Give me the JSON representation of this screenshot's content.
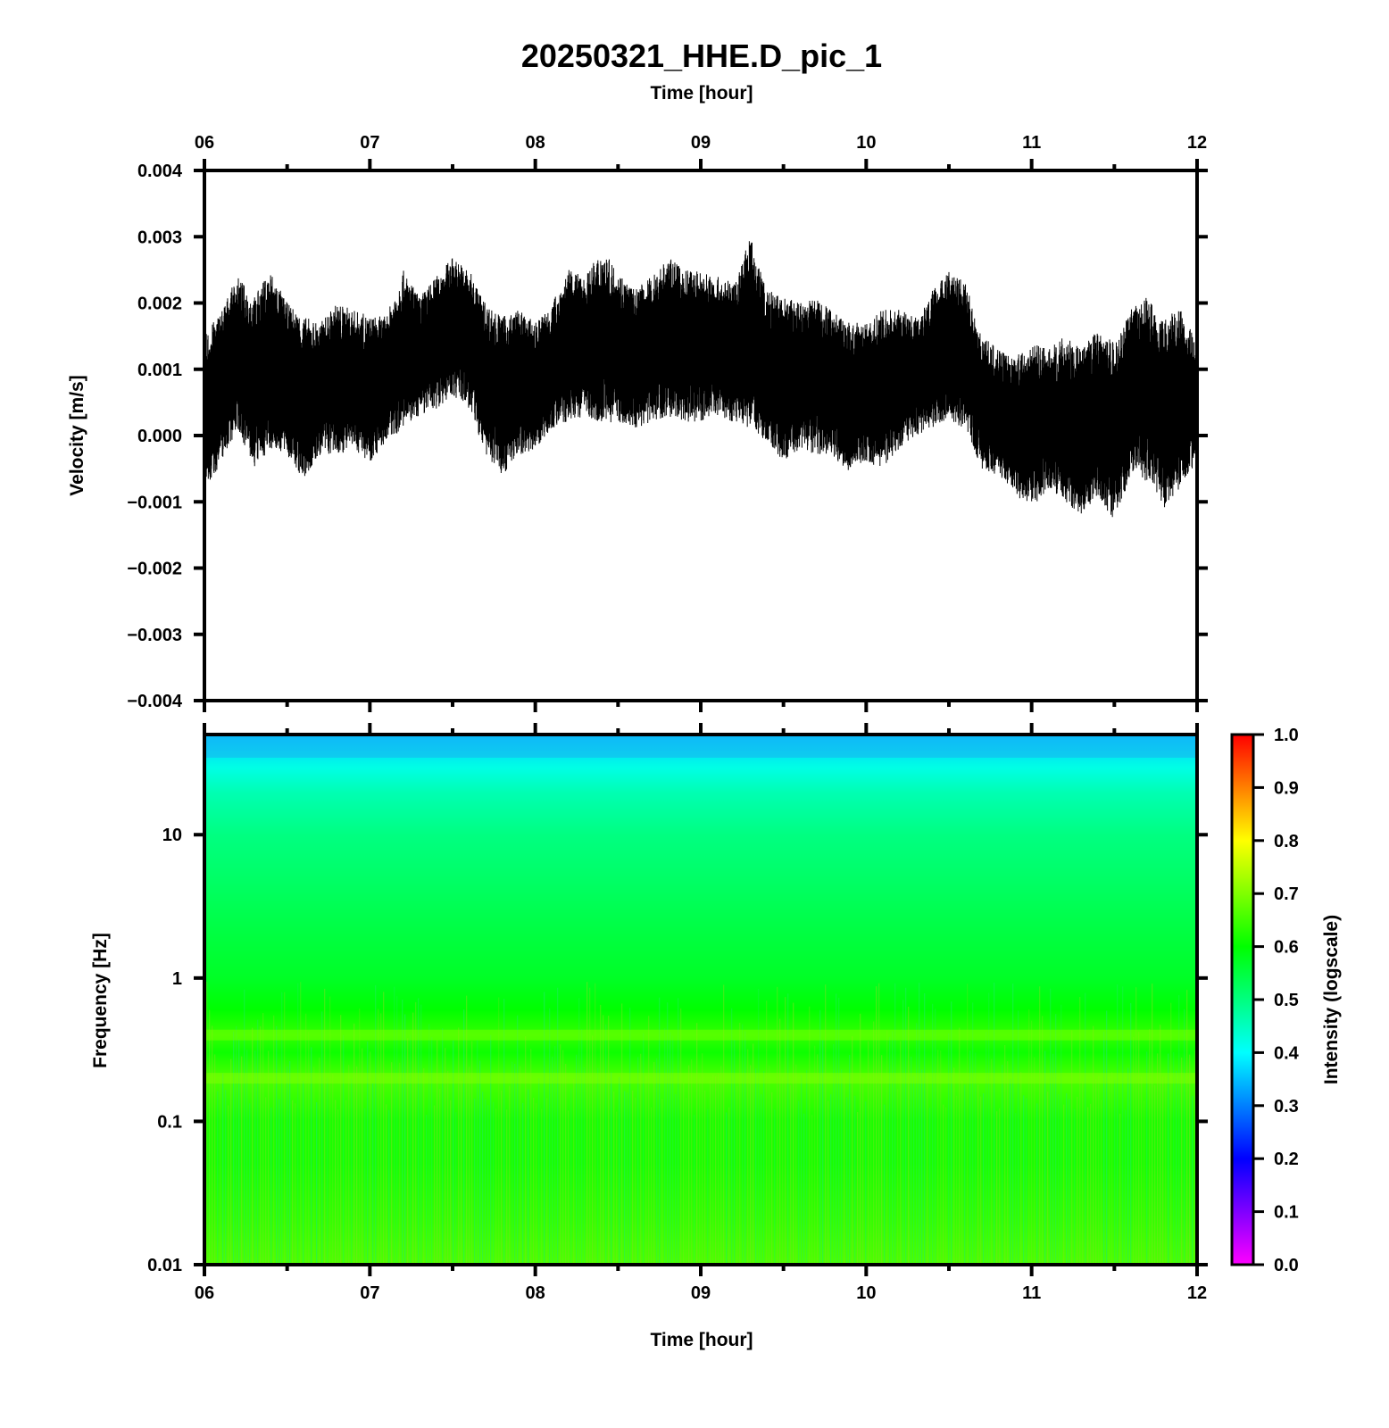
{
  "chart_data": [
    {
      "type": "line",
      "title": "20250321_HHE.D_pic_1",
      "xlabel": "Time [hour]",
      "ylabel": "Velocity [m/s]",
      "xlim": [
        6,
        12
      ],
      "ylim": [
        -0.004,
        0.004
      ],
      "xticks": [
        "06",
        "07",
        "08",
        "09",
        "10",
        "11",
        "12"
      ],
      "yticks": [
        "0.004",
        "0.003",
        "0.002",
        "0.001",
        "0.000",
        "−0.001",
        "−0.002",
        "−0.003",
        "−0.004"
      ],
      "series_color": "#000000",
      "envelope": {
        "x": [
          6.0,
          6.1,
          6.2,
          6.3,
          6.4,
          6.5,
          6.6,
          6.7,
          6.8,
          6.9,
          7.0,
          7.1,
          7.2,
          7.3,
          7.4,
          7.5,
          7.6,
          7.7,
          7.8,
          7.9,
          8.0,
          8.1,
          8.2,
          8.3,
          8.4,
          8.5,
          8.6,
          8.7,
          8.8,
          8.9,
          9.0,
          9.1,
          9.2,
          9.3,
          9.4,
          9.5,
          9.6,
          9.7,
          9.8,
          9.9,
          10.0,
          10.1,
          10.2,
          10.3,
          10.4,
          10.5,
          10.6,
          10.7,
          10.8,
          10.9,
          11.0,
          11.1,
          11.2,
          11.3,
          11.4,
          11.5,
          11.6,
          11.7,
          11.8,
          11.9,
          12.0
        ],
        "upper": [
          0.0015,
          0.0019,
          0.0024,
          0.0021,
          0.0025,
          0.002,
          0.0018,
          0.0017,
          0.002,
          0.0019,
          0.0018,
          0.0018,
          0.0025,
          0.0021,
          0.0024,
          0.0027,
          0.0025,
          0.002,
          0.0018,
          0.0019,
          0.0017,
          0.002,
          0.0025,
          0.0024,
          0.0028,
          0.0025,
          0.0022,
          0.0024,
          0.0027,
          0.0025,
          0.0025,
          0.0024,
          0.0023,
          0.003,
          0.0022,
          0.0021,
          0.002,
          0.0021,
          0.0019,
          0.0017,
          0.0017,
          0.0019,
          0.0019,
          0.0018,
          0.0022,
          0.0025,
          0.0023,
          0.0015,
          0.0013,
          0.0012,
          0.0014,
          0.0013,
          0.0015,
          0.0013,
          0.0016,
          0.0014,
          0.0019,
          0.0021,
          0.0018,
          0.0019,
          0.0014
        ],
        "lower": [
          -0.0009,
          -0.0004,
          0.0001,
          -0.0005,
          -0.0002,
          -0.0003,
          -0.0007,
          -0.0003,
          -0.0003,
          -0.0002,
          -0.0004,
          -0.0001,
          0.0001,
          0.0003,
          0.0004,
          0.0006,
          0.0004,
          -0.0003,
          -0.0006,
          -0.0003,
          -0.0002,
          0.0001,
          0.0002,
          0.0003,
          0.0002,
          0.0002,
          0.0001,
          0.0002,
          0.0003,
          0.0002,
          0.0002,
          0.0003,
          0.0002,
          0.0001,
          -0.0001,
          -0.0004,
          -0.0002,
          -0.0003,
          -0.0003,
          -0.0006,
          -0.0004,
          -0.0005,
          -0.0002,
          0.0,
          0.0001,
          0.0002,
          0.0001,
          -0.0005,
          -0.0006,
          -0.0009,
          -0.0011,
          -0.0008,
          -0.001,
          -0.0012,
          -0.0009,
          -0.0013,
          -0.0006,
          -0.0007,
          -0.0011,
          -0.0008,
          -0.0004
        ]
      }
    },
    {
      "type": "heatmap",
      "xlabel": "Time [hour]",
      "ylabel": "Frequency [Hz]",
      "xlim": [
        6,
        12
      ],
      "ylim": [
        0.01,
        50
      ],
      "yscale": "log",
      "xticks": [
        "06",
        "07",
        "08",
        "09",
        "10",
        "11",
        "12"
      ],
      "yticks": [
        "10",
        "1",
        "0.1",
        "0.01"
      ],
      "colorbar": {
        "label": "Intensity (logscale)",
        "range": [
          0.0,
          1.0
        ],
        "ticks": [
          "1.0",
          "0.9",
          "0.8",
          "0.7",
          "0.6",
          "0.5",
          "0.4",
          "0.3",
          "0.2",
          "0.1",
          "0.0"
        ],
        "colors": [
          "#ff00ff",
          "#0000ff",
          "#00ffff",
          "#00ff00",
          "#ffff00",
          "#ff0000"
        ]
      },
      "frequency_profile": {
        "frequency_hz": [
          50,
          30,
          20,
          10,
          5,
          2,
          1,
          0.6,
          0.4,
          0.3,
          0.2,
          0.1,
          0.05,
          0.02,
          0.01
        ],
        "intensity": [
          0.36,
          0.42,
          0.46,
          0.5,
          0.52,
          0.55,
          0.57,
          0.6,
          0.64,
          0.61,
          0.66,
          0.62,
          0.62,
          0.64,
          0.66
        ]
      }
    }
  ]
}
